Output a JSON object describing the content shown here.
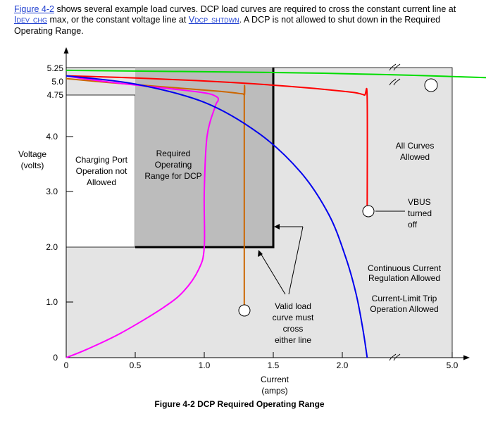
{
  "paragraph": {
    "fig_link": "Figure 4-2",
    "text1": " shows several example load curves.  DCP load curves are required to cross the constant current line at ",
    "idev_main": "I",
    "idev_sub": "DEV_CHG",
    "text2": " max, or the constant voltage line at ",
    "vdcp_main": "V",
    "vdcp_sub": "DCP_SHTDWN",
    "text3": ".  A DCP is not allowed to shut down in the Required Operating Range."
  },
  "chart_data": {
    "type": "line",
    "title": "",
    "caption": "Figure 4-2  DCP Required Operating Range",
    "xlabel": "Current",
    "xunit": "(amps)",
    "ylabel": "Voltage",
    "yunit": "(volts)",
    "xlim": [
      0,
      5.0
    ],
    "ylim": [
      0,
      5.25
    ],
    "x_ticks": [
      "0",
      "0.5",
      "1.0",
      "1.5",
      "2.0",
      "5.0"
    ],
    "y_ticks": [
      "0",
      "1.0",
      "2.0",
      "3.0",
      "4.0",
      "4.75",
      "5.0",
      "5.25"
    ],
    "regions": {
      "charging_port": [
        "Charging Port",
        "Operation not",
        "Allowed"
      ],
      "required_range": [
        "Required",
        "Operating",
        "Range for DCP"
      ],
      "all_curves": [
        "All Curves",
        "Allowed"
      ],
      "continuous": [
        "Continuous Current",
        "Regulation Allowed"
      ],
      "current_limit": [
        "Current-Limit Trip",
        "Operation Allowed"
      ],
      "valid_curve": [
        "Valid load",
        "curve must",
        "cross",
        "either line"
      ],
      "vbus": [
        "VBUS",
        "turned",
        "off"
      ]
    },
    "series": [
      {
        "color": "#00dd00",
        "x": [
          0,
          1.5,
          2.0,
          2.5,
          3.0,
          3.5,
          4.0,
          4.4
        ],
        "y": [
          5.2,
          5.16,
          5.14,
          5.11,
          5.07,
          5.03,
          4.98,
          4.92
        ]
      },
      {
        "color": "#ff0000",
        "x": [
          0,
          0.4,
          0.8,
          1.2,
          1.5,
          1.8,
          2.0,
          2.1,
          2.16,
          2.18,
          2.18
        ],
        "y": [
          5.1,
          5.07,
          5.03,
          4.98,
          4.93,
          4.87,
          4.82,
          4.79,
          4.75,
          4.7,
          2.6
        ]
      },
      {
        "color": "#cc6600",
        "x": [
          0,
          0.3,
          0.6,
          0.9,
          1.1,
          1.25,
          1.29,
          1.29,
          1.29
        ],
        "y": [
          5.05,
          4.98,
          4.92,
          4.86,
          4.82,
          4.78,
          4.75,
          4.6,
          0.85
        ]
      },
      {
        "color": "#ff00ff",
        "x": [
          0,
          0.15,
          0.4,
          0.7,
          0.85,
          0.96,
          1.0,
          1.0,
          1.02,
          1.08,
          1.1,
          1.09,
          1.0,
          0.7,
          0.4,
          0.12,
          0
        ],
        "y": [
          0,
          0.15,
          0.45,
          0.9,
          1.2,
          1.6,
          2.0,
          3.0,
          4.0,
          4.55,
          4.65,
          4.72,
          4.79,
          4.88,
          4.96,
          5.05,
          5.1
        ]
      },
      {
        "color": "#0000ee",
        "x": [
          0,
          0.5,
          1.0,
          1.4,
          1.7,
          1.9,
          2.02,
          2.1,
          2.15,
          2.18
        ],
        "y": [
          5.1,
          4.95,
          4.62,
          4.05,
          3.35,
          2.6,
          1.85,
          1.15,
          0.5,
          0
        ]
      }
    ]
  }
}
